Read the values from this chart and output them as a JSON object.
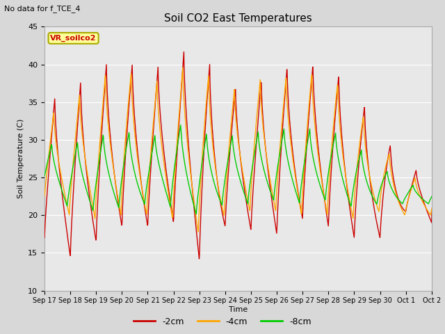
{
  "title": "Soil CO2 East Temperatures",
  "top_left_text": "No data for f_TCE_4",
  "ylabel": "Soil Temperature (C)",
  "xlabel": "Time",
  "ylim": [
    10,
    45
  ],
  "xlim": [
    0,
    15
  ],
  "background_color": "#d8d8d8",
  "plot_bg_color": "#e8e8e8",
  "legend_box_label": "VR_soilco2",
  "legend_entries": [
    "-2cm",
    "-4cm",
    "-8cm"
  ],
  "legend_colors": [
    "#cc0000",
    "#ffa500",
    "#00cc00"
  ],
  "x_tick_labels": [
    "Sep 17",
    "Sep 18",
    "Sep 19",
    "Sep 20",
    "Sep 21",
    "Sep 22",
    "Sep 23",
    "Sep 24",
    "Sep 25",
    "Sep 26",
    "Sep 27",
    "Sep 28",
    "Sep 29",
    "Sep 30",
    "Oct 1",
    "Oct 2"
  ],
  "ytick_values": [
    10,
    15,
    20,
    25,
    30,
    35,
    40,
    45
  ],
  "grid_color": "#ffffff",
  "line_colors": {
    "2cm": "#cc0000",
    "4cm": "#ffa500",
    "8cm": "#00cc00"
  },
  "peaks_2cm": [
    35,
    36.5,
    39.5,
    41,
    38.5,
    41.5,
    42,
    37,
    37,
    39.5,
    40,
    40,
    36.5,
    31.5,
    26,
    26
  ],
  "troughs_2cm": [
    17,
    14.5,
    16.5,
    18.5,
    18.5,
    19,
    14,
    18.5,
    18,
    17.5,
    19.5,
    18.5,
    17,
    17,
    20.5,
    19
  ],
  "peaks_4cm": [
    33,
    35,
    38,
    40,
    37,
    39.5,
    40,
    36,
    38,
    38,
    39,
    39,
    35,
    30,
    25,
    25
  ],
  "troughs_4cm": [
    20.5,
    20,
    19.5,
    20,
    20,
    19.5,
    17.5,
    20,
    20.5,
    20.5,
    20,
    20,
    19.5,
    20.5,
    20,
    20
  ],
  "peaks_8cm": [
    29.5,
    29.5,
    30.5,
    31.5,
    30,
    32.5,
    31,
    30.5,
    31,
    31.5,
    31.5,
    31.5,
    29.5,
    26.5,
    24,
    24
  ],
  "troughs_8cm": [
    22.5,
    21,
    20.5,
    21,
    21.5,
    21,
    20,
    21.5,
    21.5,
    22,
    21.5,
    22,
    21,
    21.5,
    21.5,
    21.5
  ]
}
